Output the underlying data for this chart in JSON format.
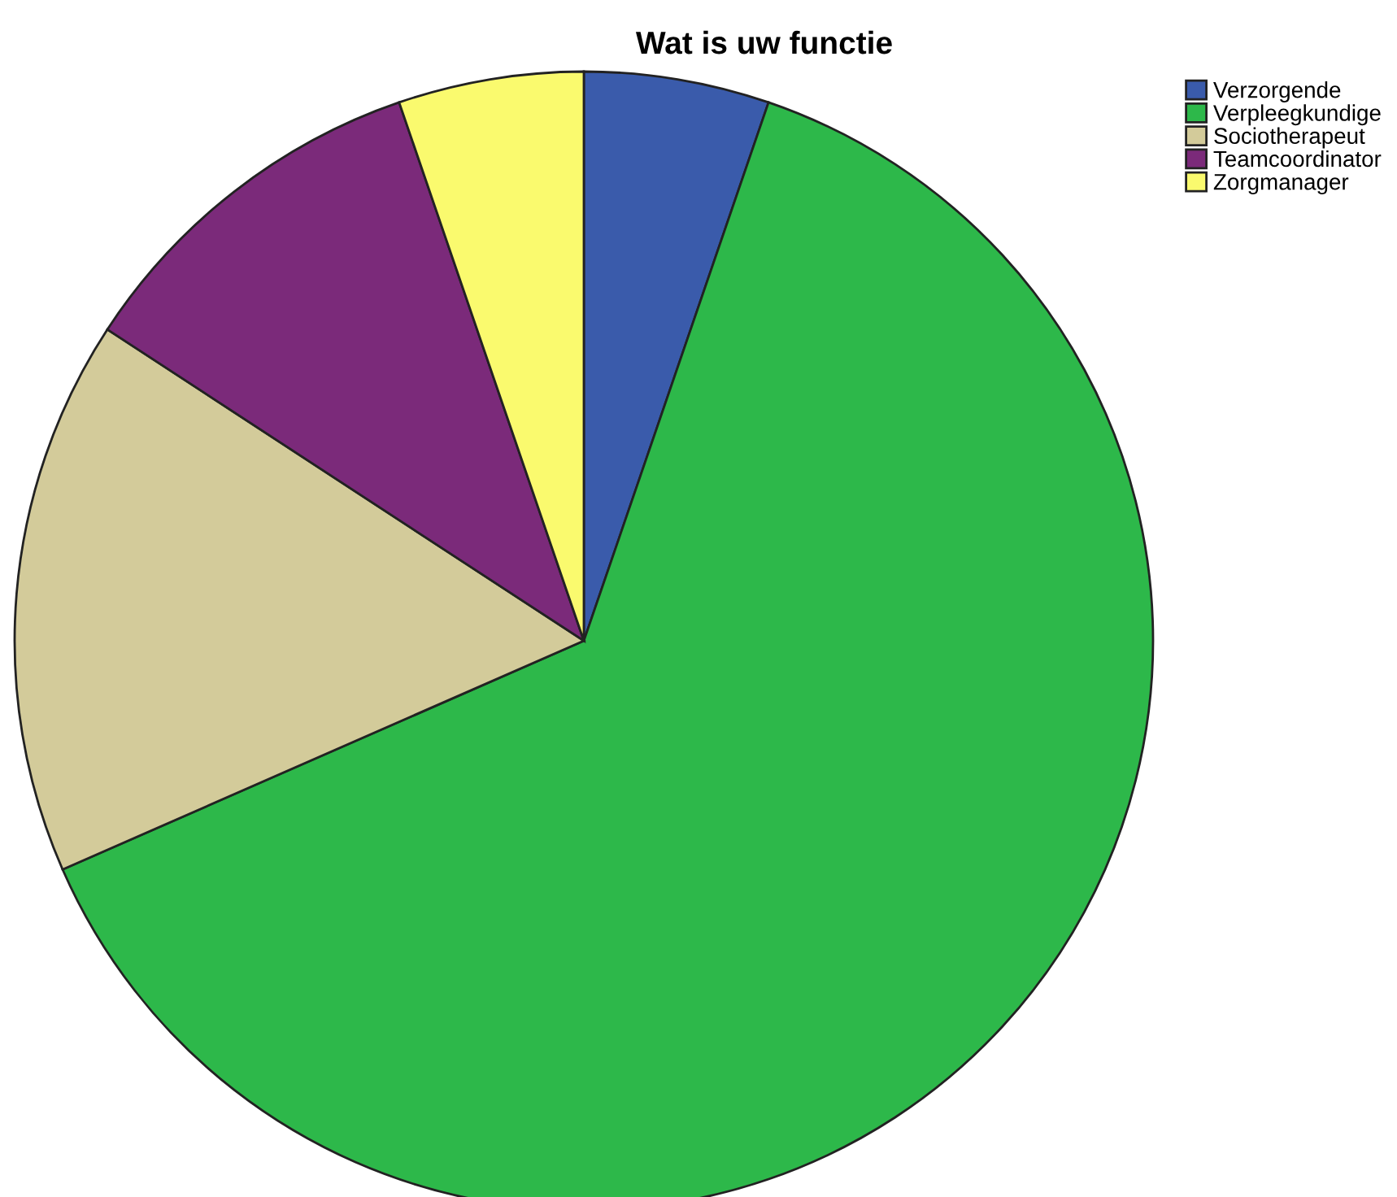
{
  "chart_data": {
    "type": "pie",
    "title": "Wat is uw functie",
    "categories": [
      "Verzorgende",
      "Verpleegkundige",
      "Sociotherapeut",
      "Teamcoordinator",
      "Zorgmanager"
    ],
    "values": [
      5.26,
      63.16,
      15.79,
      10.53,
      5.26
    ],
    "colors": [
      "#3a5bab",
      "#2db84a",
      "#d3cb9a",
      "#7b2a7a",
      "#fafa6e"
    ],
    "legend": "top right"
  }
}
